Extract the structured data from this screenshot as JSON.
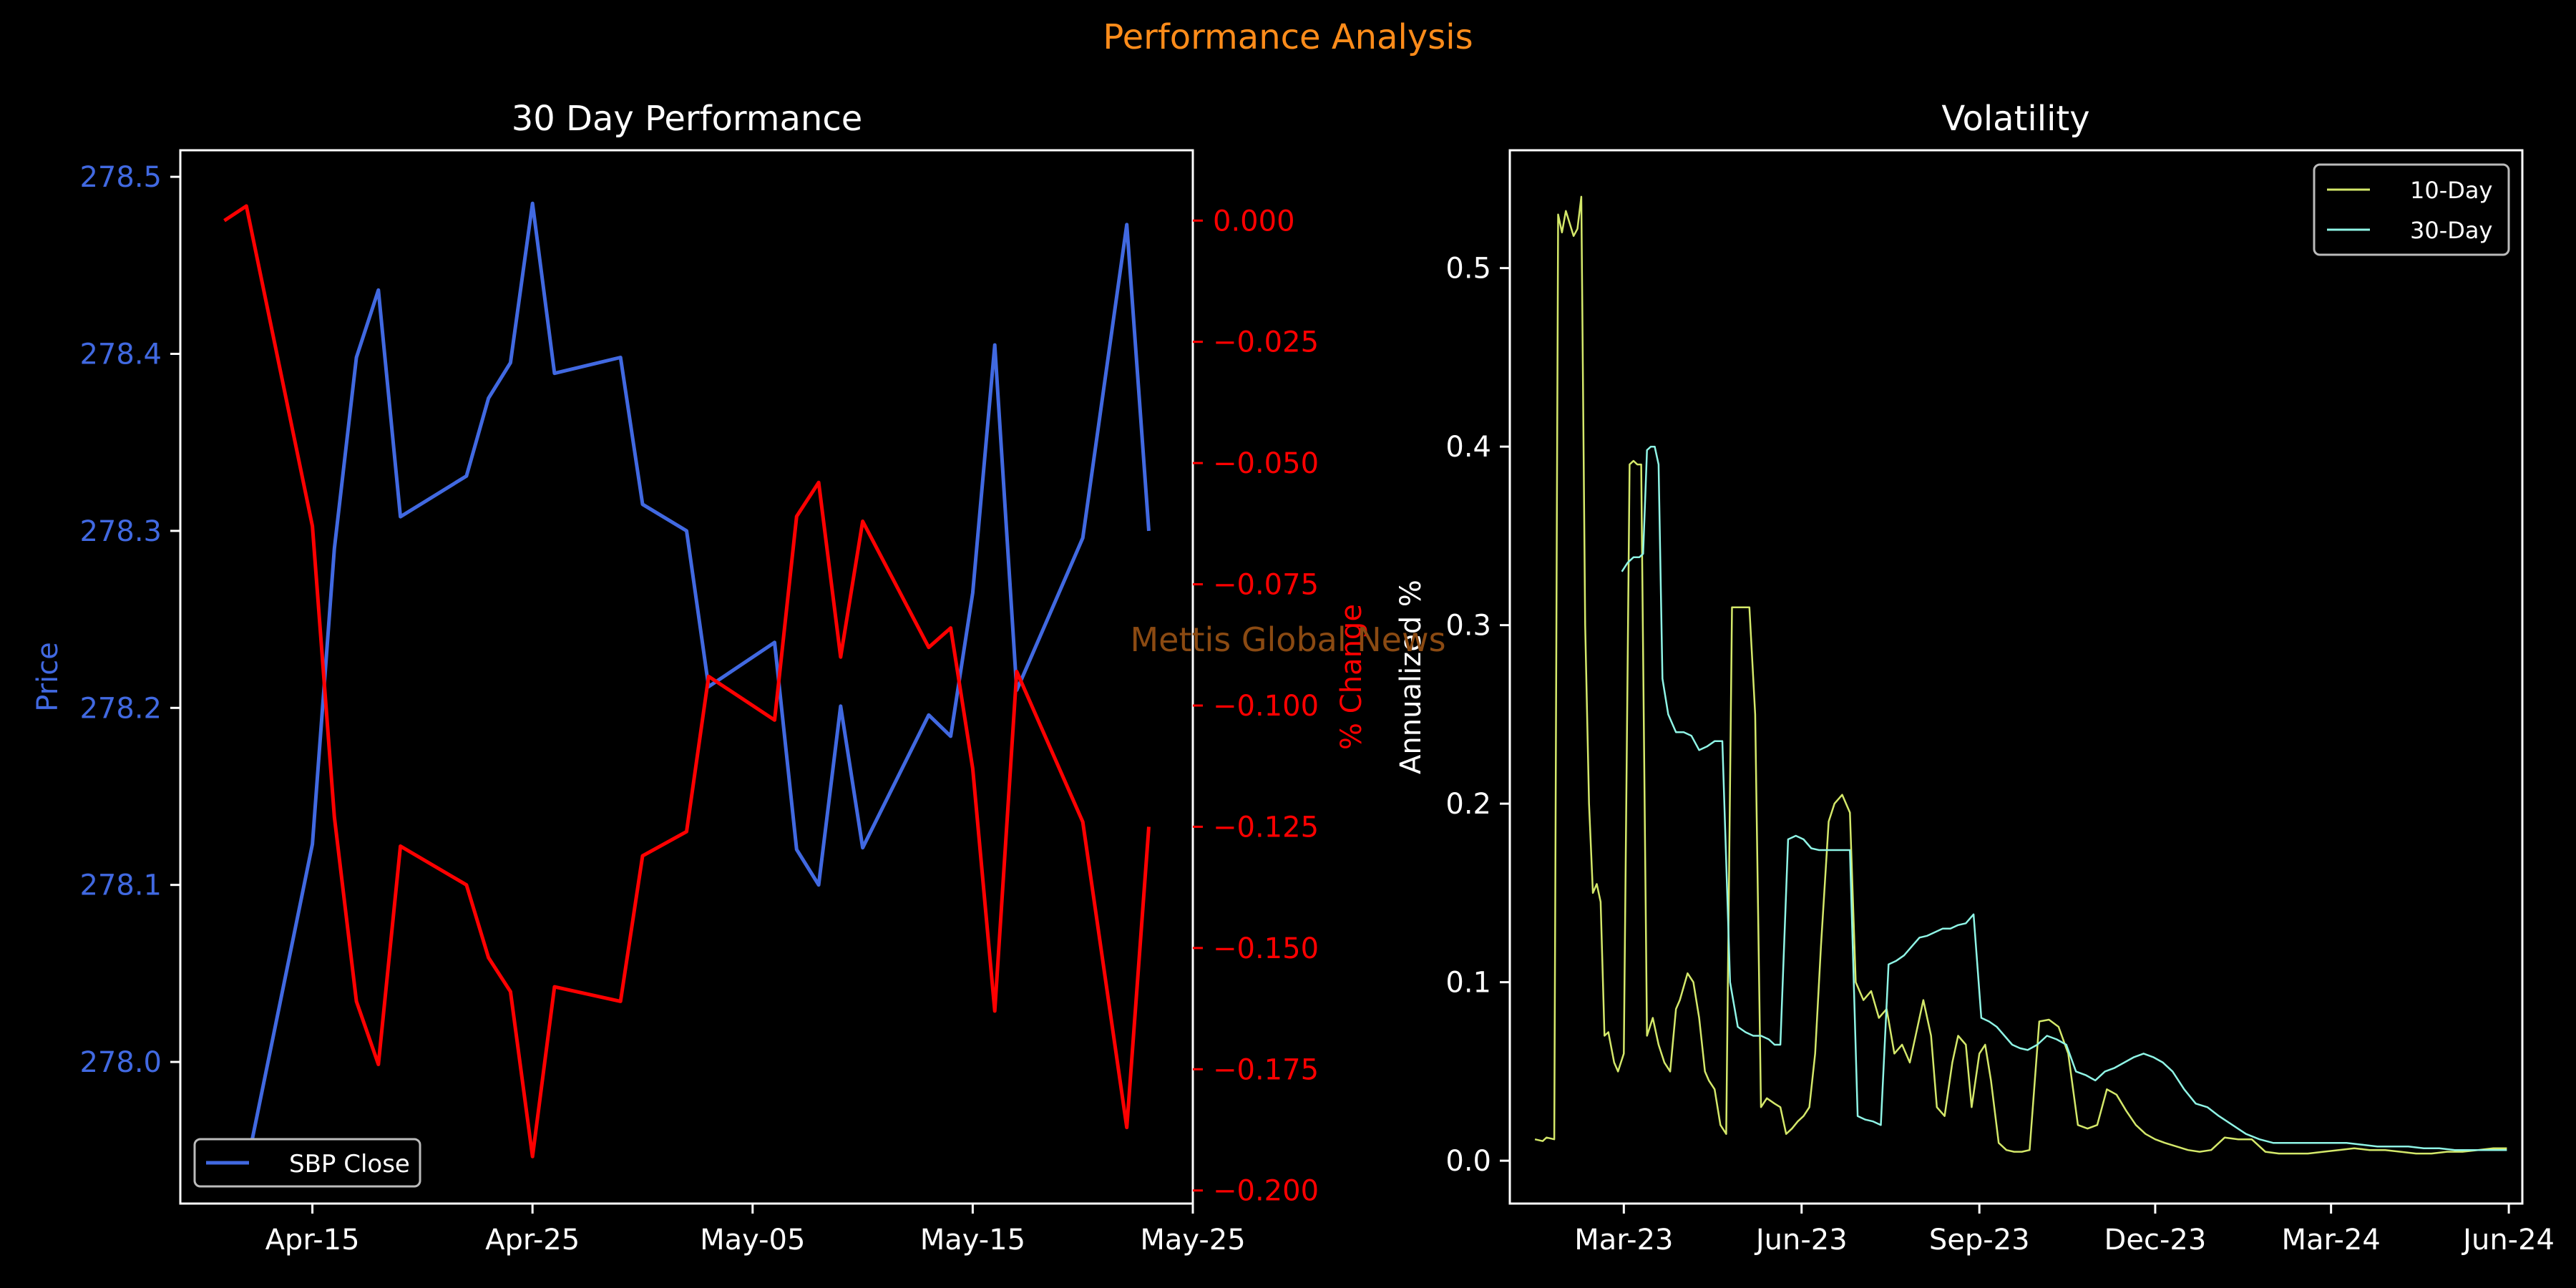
{
  "figure": {
    "title": "Performance Analysis",
    "watermark": "Mettis Global News",
    "colors": {
      "background": "#000000",
      "title": "#ff8c1a",
      "axes": "#ffffff",
      "watermark": "#8b4a12"
    }
  },
  "chart_data": [
    {
      "type": "line",
      "title": "30 Day Performance",
      "ylabel": "Price",
      "y2label": "% Change",
      "xlim": [
        "2024-04-09",
        "2024-05-25"
      ],
      "ylim": [
        277.92,
        278.515
      ],
      "y2lim": [
        -0.2027,
        0.0145
      ],
      "xticks": [
        "2024-04-15",
        "2024-04-25",
        "2024-05-05",
        "2024-05-15",
        "2024-05-25"
      ],
      "xtick_labels": [
        "Apr-15",
        "Apr-25",
        "May-05",
        "May-15",
        "May-25"
      ],
      "yticks": [
        278.0,
        278.1,
        278.2,
        278.3,
        278.4,
        278.5
      ],
      "ytick_labels": [
        "278.0",
        "278.1",
        "278.2",
        "278.3",
        "278.4",
        "278.5"
      ],
      "y2ticks": [
        0.0,
        -0.025,
        -0.05,
        -0.075,
        -0.1,
        -0.125,
        -0.15,
        -0.175,
        -0.2
      ],
      "y2tick_labels": [
        "0.000",
        "−0.025",
        "−0.050",
        "−0.075",
        "−0.100",
        "−0.125",
        "−0.150",
        "−0.175",
        "−0.200"
      ],
      "legend": {
        "placement": "lower-left",
        "entries": [
          "SBP Close"
        ]
      },
      "grid": false,
      "series": [
        {
          "name": "SBP Close",
          "axis": "left",
          "color": "#4169e1",
          "x": [
            "2024-04-11",
            "2024-04-12",
            "2024-04-15",
            "2024-04-16",
            "2024-04-17",
            "2024-04-18",
            "2024-04-19",
            "2024-04-22",
            "2024-04-23",
            "2024-04-24",
            "2024-04-25",
            "2024-04-26",
            "2024-04-29",
            "2024-04-30",
            "2024-05-02",
            "2024-05-03",
            "2024-05-06",
            "2024-05-07",
            "2024-05-08",
            "2024-05-09",
            "2024-05-10",
            "2024-05-13",
            "2024-05-14",
            "2024-05-15",
            "2024-05-16",
            "2024-05-17",
            "2024-05-20",
            "2024-05-22",
            "2024-05-23"
          ],
          "values": [
            277.945,
            277.94,
            278.123,
            278.29,
            278.398,
            278.436,
            278.308,
            278.331,
            278.375,
            278.395,
            278.485,
            278.389,
            278.398,
            278.315,
            278.3,
            278.212,
            278.237,
            278.12,
            278.1,
            278.201,
            278.121,
            278.196,
            278.184,
            278.265,
            278.405,
            278.21,
            278.296,
            278.473,
            278.3
          ]
        },
        {
          "name": "% Change",
          "axis": "right",
          "color": "#ff0000",
          "x": [
            "2024-04-11",
            "2024-04-12",
            "2024-04-15",
            "2024-04-16",
            "2024-04-17",
            "2024-04-18",
            "2024-04-19",
            "2024-04-22",
            "2024-04-23",
            "2024-04-24",
            "2024-04-25",
            "2024-04-26",
            "2024-04-29",
            "2024-04-30",
            "2024-05-02",
            "2024-05-03",
            "2024-05-06",
            "2024-05-07",
            "2024-05-08",
            "2024-05-09",
            "2024-05-10",
            "2024-05-13",
            "2024-05-14",
            "2024-05-15",
            "2024-05-16",
            "2024-05-17",
            "2024-05-20",
            "2024-05-22",
            "2024-05-23"
          ],
          "values": [
            0.0,
            0.003,
            -0.063,
            -0.123,
            -0.161,
            -0.174,
            -0.129,
            -0.137,
            -0.152,
            -0.159,
            -0.193,
            -0.158,
            -0.161,
            -0.131,
            -0.126,
            -0.094,
            -0.103,
            -0.061,
            -0.054,
            -0.09,
            -0.062,
            -0.088,
            -0.084,
            -0.113,
            -0.163,
            -0.093,
            -0.124,
            -0.187,
            -0.125
          ]
        }
      ]
    },
    {
      "type": "line",
      "title": "Volatility",
      "ylabel": "Annualized %",
      "xlim": [
        "2023-01-01",
        "2024-06-08"
      ],
      "ylim": [
        -0.024,
        0.566
      ],
      "xticks": [
        "2023-03-01",
        "2023-06-01",
        "2023-09-01",
        "2023-12-01",
        "2024-03-01",
        "2024-06-01"
      ],
      "xtick_labels": [
        "Mar-23",
        "Jun-23",
        "Sep-23",
        "Dec-23",
        "Mar-24",
        "Jun-24"
      ],
      "yticks": [
        0.0,
        0.1,
        0.2,
        0.3,
        0.4,
        0.5
      ],
      "ytick_labels": [
        "0.0",
        "0.1",
        "0.2",
        "0.3",
        "0.4",
        "0.5"
      ],
      "legend": {
        "placement": "top-right",
        "entries": [
          "10-Day",
          "30-Day"
        ]
      },
      "grid": false,
      "series": [
        {
          "name": "10-Day",
          "color": "#d4e86a",
          "x": [
            "2023-01-14",
            "2023-01-18",
            "2023-01-20",
            "2023-01-24",
            "2023-01-26",
            "2023-01-28",
            "2023-01-30",
            "2023-02-01",
            "2023-02-03",
            "2023-02-05",
            "2023-02-07",
            "2023-02-09",
            "2023-02-11",
            "2023-02-13",
            "2023-02-15",
            "2023-02-17",
            "2023-02-19",
            "2023-02-21",
            "2023-02-24",
            "2023-02-26",
            "2023-03-01",
            "2023-03-04",
            "2023-03-06",
            "2023-03-08",
            "2023-03-10",
            "2023-03-13",
            "2023-03-16",
            "2023-03-19",
            "2023-03-22",
            "2023-03-25",
            "2023-03-28",
            "2023-03-30",
            "2023-04-03",
            "2023-04-06",
            "2023-04-09",
            "2023-04-12",
            "2023-04-14",
            "2023-04-17",
            "2023-04-20",
            "2023-04-23",
            "2023-04-26",
            "2023-04-29",
            "2023-05-02",
            "2023-05-05",
            "2023-05-08",
            "2023-05-11",
            "2023-05-14",
            "2023-05-18",
            "2023-05-21",
            "2023-05-24",
            "2023-05-27",
            "2023-05-30",
            "2023-06-02",
            "2023-06-05",
            "2023-06-08",
            "2023-06-11",
            "2023-06-15",
            "2023-06-18",
            "2023-06-22",
            "2023-06-26",
            "2023-06-29",
            "2023-07-03",
            "2023-07-07",
            "2023-07-11",
            "2023-07-15",
            "2023-07-19",
            "2023-07-23",
            "2023-07-27",
            "2023-07-31",
            "2023-08-03",
            "2023-08-07",
            "2023-08-10",
            "2023-08-14",
            "2023-08-18",
            "2023-08-21",
            "2023-08-25",
            "2023-08-28",
            "2023-09-01",
            "2023-09-04",
            "2023-09-07",
            "2023-09-11",
            "2023-09-15",
            "2023-09-19",
            "2023-09-23",
            "2023-09-27",
            "2023-10-02",
            "2023-10-07",
            "2023-10-12",
            "2023-10-17",
            "2023-10-22",
            "2023-10-27",
            "2023-11-01",
            "2023-11-06",
            "2023-11-11",
            "2023-11-16",
            "2023-11-21",
            "2023-11-26",
            "2023-12-01",
            "2023-12-06",
            "2023-12-12",
            "2023-12-18",
            "2023-12-24",
            "2023-12-30",
            "2024-01-06",
            "2024-01-13",
            "2024-01-20",
            "2024-01-27",
            "2024-02-03",
            "2024-02-10",
            "2024-02-18",
            "2024-02-26",
            "2024-03-05",
            "2024-03-13",
            "2024-03-21",
            "2024-03-29",
            "2024-04-06",
            "2024-04-14",
            "2024-04-22",
            "2024-04-30",
            "2024-05-08",
            "2024-05-16",
            "2024-05-24",
            "2024-05-31"
          ],
          "values": [
            0.012,
            0.011,
            0.013,
            0.012,
            0.53,
            0.52,
            0.532,
            0.525,
            0.518,
            0.522,
            0.54,
            0.3,
            0.2,
            0.15,
            0.155,
            0.145,
            0.07,
            0.072,
            0.055,
            0.05,
            0.06,
            0.39,
            0.392,
            0.39,
            0.39,
            0.07,
            0.08,
            0.065,
            0.055,
            0.05,
            0.085,
            0.09,
            0.105,
            0.1,
            0.08,
            0.05,
            0.045,
            0.04,
            0.02,
            0.015,
            0.31,
            0.31,
            0.31,
            0.31,
            0.25,
            0.03,
            0.035,
            0.032,
            0.03,
            0.015,
            0.018,
            0.022,
            0.025,
            0.03,
            0.06,
            0.12,
            0.19,
            0.2,
            0.205,
            0.195,
            0.1,
            0.09,
            0.095,
            0.08,
            0.085,
            0.06,
            0.065,
            0.055,
            0.075,
            0.09,
            0.07,
            0.03,
            0.025,
            0.055,
            0.07,
            0.065,
            0.03,
            0.06,
            0.065,
            0.045,
            0.01,
            0.006,
            0.005,
            0.005,
            0.006,
            0.078,
            0.079,
            0.075,
            0.06,
            0.02,
            0.018,
            0.02,
            0.04,
            0.037,
            0.028,
            0.02,
            0.015,
            0.012,
            0.01,
            0.008,
            0.006,
            0.005,
            0.006,
            0.013,
            0.012,
            0.012,
            0.005,
            0.004,
            0.004,
            0.004,
            0.005,
            0.006,
            0.007,
            0.006,
            0.006,
            0.005,
            0.004,
            0.004,
            0.005,
            0.005,
            0.006,
            0.007,
            0.007
          ]
        },
        {
          "name": "30-Day",
          "color": "#8ff5e6",
          "x": [
            "2023-02-28",
            "2023-03-03",
            "2023-03-06",
            "2023-03-09",
            "2023-03-11",
            "2023-03-13",
            "2023-03-15",
            "2023-03-17",
            "2023-03-19",
            "2023-03-21",
            "2023-03-24",
            "2023-03-28",
            "2023-04-01",
            "2023-04-05",
            "2023-04-09",
            "2023-04-13",
            "2023-04-17",
            "2023-04-21",
            "2023-04-25",
            "2023-04-29",
            "2023-05-03",
            "2023-05-07",
            "2023-05-11",
            "2023-05-15",
            "2023-05-18",
            "2023-05-21",
            "2023-05-25",
            "2023-05-29",
            "2023-06-02",
            "2023-06-06",
            "2023-06-10",
            "2023-06-14",
            "2023-06-18",
            "2023-06-22",
            "2023-06-26",
            "2023-06-30",
            "2023-07-04",
            "2023-07-08",
            "2023-07-12",
            "2023-07-16",
            "2023-07-20",
            "2023-07-24",
            "2023-07-28",
            "2023-08-01",
            "2023-08-05",
            "2023-08-09",
            "2023-08-13",
            "2023-08-17",
            "2023-08-21",
            "2023-08-25",
            "2023-08-29",
            "2023-09-02",
            "2023-09-06",
            "2023-09-10",
            "2023-09-14",
            "2023-09-18",
            "2023-09-22",
            "2023-09-26",
            "2023-10-01",
            "2023-10-06",
            "2023-10-11",
            "2023-10-16",
            "2023-10-21",
            "2023-10-26",
            "2023-10-31",
            "2023-11-05",
            "2023-11-10",
            "2023-11-15",
            "2023-11-20",
            "2023-11-25",
            "2023-11-30",
            "2023-12-05",
            "2023-12-10",
            "2023-12-16",
            "2023-12-22",
            "2023-12-28",
            "2024-01-03",
            "2024-01-10",
            "2024-01-17",
            "2024-01-24",
            "2024-01-31",
            "2024-02-07",
            "2024-02-14",
            "2024-02-22",
            "2024-03-01",
            "2024-03-09",
            "2024-03-17",
            "2024-03-25",
            "2024-04-02",
            "2024-04-10",
            "2024-04-18",
            "2024-04-26",
            "2024-05-04",
            "2024-05-12",
            "2024-05-20",
            "2024-05-28",
            "2024-05-31"
          ],
          "values": [
            0.33,
            0.335,
            0.338,
            0.338,
            0.34,
            0.398,
            0.4,
            0.4,
            0.39,
            0.27,
            0.25,
            0.24,
            0.24,
            0.238,
            0.23,
            0.232,
            0.235,
            0.235,
            0.1,
            0.075,
            0.072,
            0.07,
            0.07,
            0.068,
            0.065,
            0.065,
            0.18,
            0.182,
            0.18,
            0.175,
            0.174,
            0.174,
            0.174,
            0.174,
            0.174,
            0.025,
            0.023,
            0.022,
            0.02,
            0.11,
            0.112,
            0.115,
            0.12,
            0.125,
            0.126,
            0.128,
            0.13,
            0.13,
            0.132,
            0.133,
            0.138,
            0.08,
            0.078,
            0.075,
            0.07,
            0.065,
            0.063,
            0.062,
            0.065,
            0.07,
            0.068,
            0.065,
            0.05,
            0.048,
            0.045,
            0.05,
            0.052,
            0.055,
            0.058,
            0.06,
            0.058,
            0.055,
            0.05,
            0.04,
            0.032,
            0.03,
            0.025,
            0.02,
            0.015,
            0.012,
            0.01,
            0.01,
            0.01,
            0.01,
            0.01,
            0.01,
            0.009,
            0.008,
            0.008,
            0.008,
            0.007,
            0.007,
            0.006,
            0.006,
            0.006,
            0.006,
            0.006
          ]
        }
      ]
    }
  ]
}
